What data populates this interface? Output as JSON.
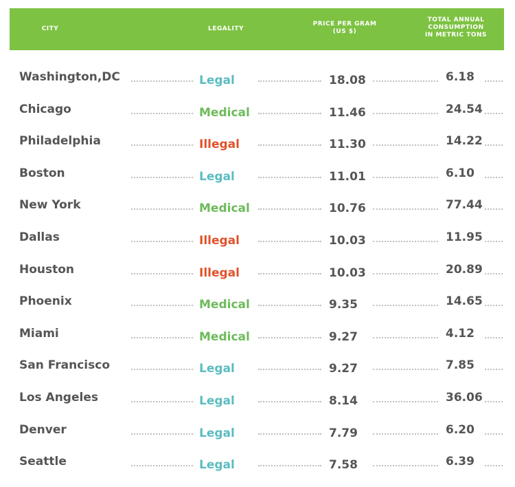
{
  "chart_data": {
    "type": "table",
    "columns": [
      "CITY",
      "LEGALITY",
      "PRICE PER GRAM (US $)",
      "TOTAL ANNUAL CONSUMPTION IN METRIC TONS"
    ],
    "header": {
      "city": "CITY",
      "legality": "LEGALITY",
      "price_line1": "PRICE PER GRAM",
      "price_line2": "(US $)",
      "cons_line1": "TOTAL ANNUAL",
      "cons_line2": "CONSUMPTION",
      "cons_line3": "IN METRIC TONS"
    },
    "rows": [
      {
        "city": "Washington,DC",
        "legality": "Legal",
        "price": "18.08",
        "consumption": "6.18"
      },
      {
        "city": "Chicago",
        "legality": "Medical",
        "price": "11.46",
        "consumption": "24.54"
      },
      {
        "city": "Philadelphia",
        "legality": "Illegal",
        "price": "11.30",
        "consumption": "14.22"
      },
      {
        "city": "Boston",
        "legality": "Legal",
        "price": "11.01",
        "consumption": "6.10"
      },
      {
        "city": "New York",
        "legality": "Medical",
        "price": "10.76",
        "consumption": "77.44"
      },
      {
        "city": "Dallas",
        "legality": "Illegal",
        "price": "10.03",
        "consumption": "11.95"
      },
      {
        "city": "Houston",
        "legality": "Illegal",
        "price": "10.03",
        "consumption": "20.89"
      },
      {
        "city": "Phoenix",
        "legality": "Medical",
        "price": "9.35",
        "consumption": "14.65"
      },
      {
        "city": "Miami",
        "legality": "Medical",
        "price": "9.27",
        "consumption": "4.12"
      },
      {
        "city": "San Francisco",
        "legality": "Legal",
        "price": "9.27",
        "consumption": "7.85"
      },
      {
        "city": "Los Angeles",
        "legality": "Legal",
        "price": "8.14",
        "consumption": "36.06"
      },
      {
        "city": "Denver",
        "legality": "Legal",
        "price": "7.79",
        "consumption": "6.20"
      },
      {
        "city": "Seattle",
        "legality": "Legal",
        "price": "7.58",
        "consumption": "6.39"
      }
    ]
  },
  "colors": {
    "header_bg": "#7dc242",
    "Legal": "#5bbcc0",
    "Medical": "#6dbb5a",
    "Illegal": "#e0522a",
    "text": "#555555"
  }
}
